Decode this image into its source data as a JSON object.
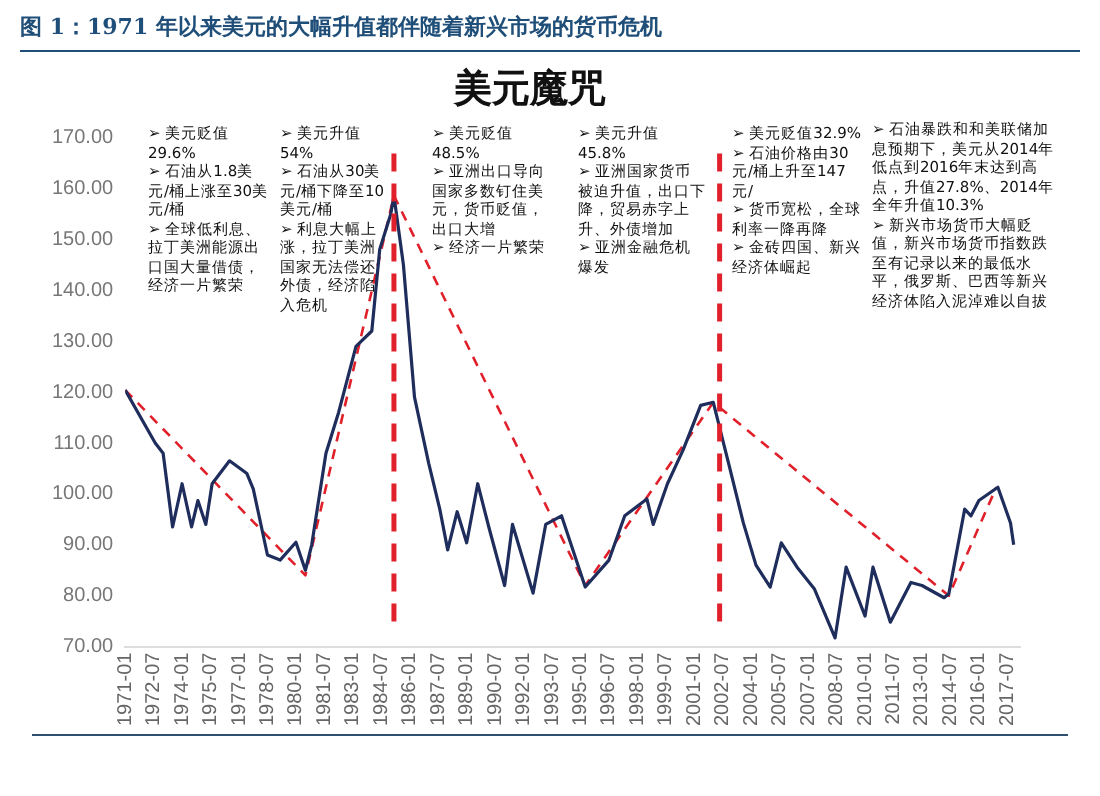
{
  "chart_data": {
    "type": "line",
    "subtitle": "图 1：1971 年以来美元的大幅升值都伴随着新兴市场的货币危机",
    "title": "美元魔咒",
    "annotations": [
      "➢ 美元贬值29.6%\n➢ 石油从1.8美元/桶上涨至30美元/桶\n➢ 全球低利息、拉丁美洲能源出口国大量借债，经济一片繁荣",
      "➢ 美元升值54%\n➢ 石油从30美元/桶下降至10美元/桶\n➢ 利息大幅上涨，拉丁美洲国家无法偿还外债，经济陷入危机",
      "➢ 美元贬值48.5%\n➢ 亚洲出口导向国家多数钉住美元，货币贬值，出口大增\n➢ 经济一片繁荣",
      "➢ 美元升值45.8%\n➢ 亚洲国家货币被迫升值，出口下降，贸易赤字上升、外债增加\n➢ 亚洲金融危机爆发",
      "➢ 美元贬值32.9%\n➢ 石油价格由30元/桶上升至147元/\n➢ 货币宽松，全球利率一降再降\n➢ 金砖四国、新兴经济体崛起",
      "➢ 石油暴跌和和美联储加息预期下，美元从2014年低点到2016年末达到高点，升值27.8%、2014年全年升值10.3%\n➢ 新兴市场货币大幅贬值，新兴市场货币指数跌至有记录以来的最低水平，俄罗斯、巴西等新兴经济体陷入泥淖难以自拔"
    ],
    "series": [
      {
        "color": "#1f2d5c",
        "line_style": "solid",
        "x": [
          "1971-01",
          "1972-08",
          "1973-01",
          "1973-07",
          "1974-01",
          "1974-07",
          "1974-11",
          "1975-04",
          "1975-08",
          "1976-07",
          "1977-06",
          "1977-10",
          "1978-07",
          "1979-03",
          "1980-01",
          "1980-07",
          "1980-11",
          "1981-08",
          "1982-04",
          "1983-03",
          "1984-01",
          "1984-06",
          "1985-01",
          "1985-03",
          "1985-09",
          "1986-04",
          "1987-01",
          "1987-08",
          "1988-01",
          "1988-07",
          "1989-01",
          "1989-08",
          "1990-03",
          "1991-01",
          "1991-06",
          "1992-07",
          "1993-03",
          "1994-01",
          "1995-04",
          "1996-07",
          "1997-05",
          "1998-07",
          "1998-11",
          "1999-08",
          "2000-06",
          "2001-05",
          "2002-01",
          "2002-11",
          "2003-08",
          "2004-04",
          "2005-01",
          "2005-08",
          "2006-06",
          "2007-05",
          "2008-06",
          "2009-01",
          "2010-01",
          "2010-06",
          "2011-05",
          "2012-06",
          "2013-01",
          "2014-03",
          "2014-06",
          "2015-04",
          "2015-08",
          "2016-01",
          "2017-01",
          "2017-09",
          "2017-11"
        ],
        "values": [
          120.4,
          110,
          108,
          93.5,
          102,
          93.5,
          98.7,
          94,
          102,
          106.5,
          104,
          101,
          88,
          87,
          90.5,
          85,
          90,
          108,
          116,
          129,
          132,
          148,
          155,
          158.6,
          145,
          119,
          106,
          97,
          89,
          96.5,
          90.4,
          102,
          93.5,
          82,
          94,
          80.5,
          94,
          95.7,
          81.7,
          87,
          95.7,
          99,
          94,
          102,
          108.7,
          117.4,
          118,
          105.6,
          94.3,
          86,
          81.7,
          90.4,
          85.6,
          81.3,
          71.7,
          85.6,
          76,
          85.6,
          74.8,
          82.6,
          82,
          79.6,
          80.4,
          97,
          95.7,
          98.7,
          101.3,
          94.3,
          90
        ]
      },
      {
        "color": "#e0202a",
        "line_style": "dashed",
        "x": [
          "1971-01",
          "1980-07",
          "1985-03",
          "1995-04",
          "2002-01",
          "2014-06",
          "2016-12"
        ],
        "values": [
          120.4,
          84,
          158.6,
          82,
          118,
          80,
          101.3
        ]
      }
    ],
    "ref_lines": [
      {
        "axis": "x",
        "value": "1985-03",
        "color": "#e0202a",
        "line_style": "dashed"
      },
      {
        "axis": "x",
        "value": "2002-05",
        "color": "#e0202a",
        "line_style": "dashed"
      }
    ],
    "xlim": [
      "1971-01",
      "2018-03"
    ],
    "xticks": [
      "1971-01",
      "1972-07",
      "1974-01",
      "1975-07",
      "1977-01",
      "1978-07",
      "1980-01",
      "1981-07",
      "1983-01",
      "1984-07",
      "1986-01",
      "1987-07",
      "1989-01",
      "1990-07",
      "1992-01",
      "1993-07",
      "1995-01",
      "1996-07",
      "1998-01",
      "1999-07",
      "2001-01",
      "2002-07",
      "2004-01",
      "2005-07",
      "2007-01",
      "2008-07",
      "2010-01",
      "2011-07",
      "2013-01",
      "2014-07",
      "2016-01",
      "2017-07"
    ],
    "ylim": [
      70,
      170
    ],
    "yticks": [
      {
        "value": 70,
        "label": "70.00"
      },
      {
        "value": 80,
        "label": "80.00"
      },
      {
        "value": 90,
        "label": "90.00"
      },
      {
        "value": 100,
        "label": "100.00"
      },
      {
        "value": 110,
        "label": "110.00"
      },
      {
        "value": 120,
        "label": "120.00"
      },
      {
        "value": 130,
        "label": "130.00"
      },
      {
        "value": 140,
        "label": "140.00"
      },
      {
        "value": 150,
        "label": "150.00"
      },
      {
        "value": 160,
        "label": "160.00"
      },
      {
        "value": 170,
        "label": "170.00"
      }
    ],
    "grid": false,
    "legend": false,
    "marker": "none"
  }
}
